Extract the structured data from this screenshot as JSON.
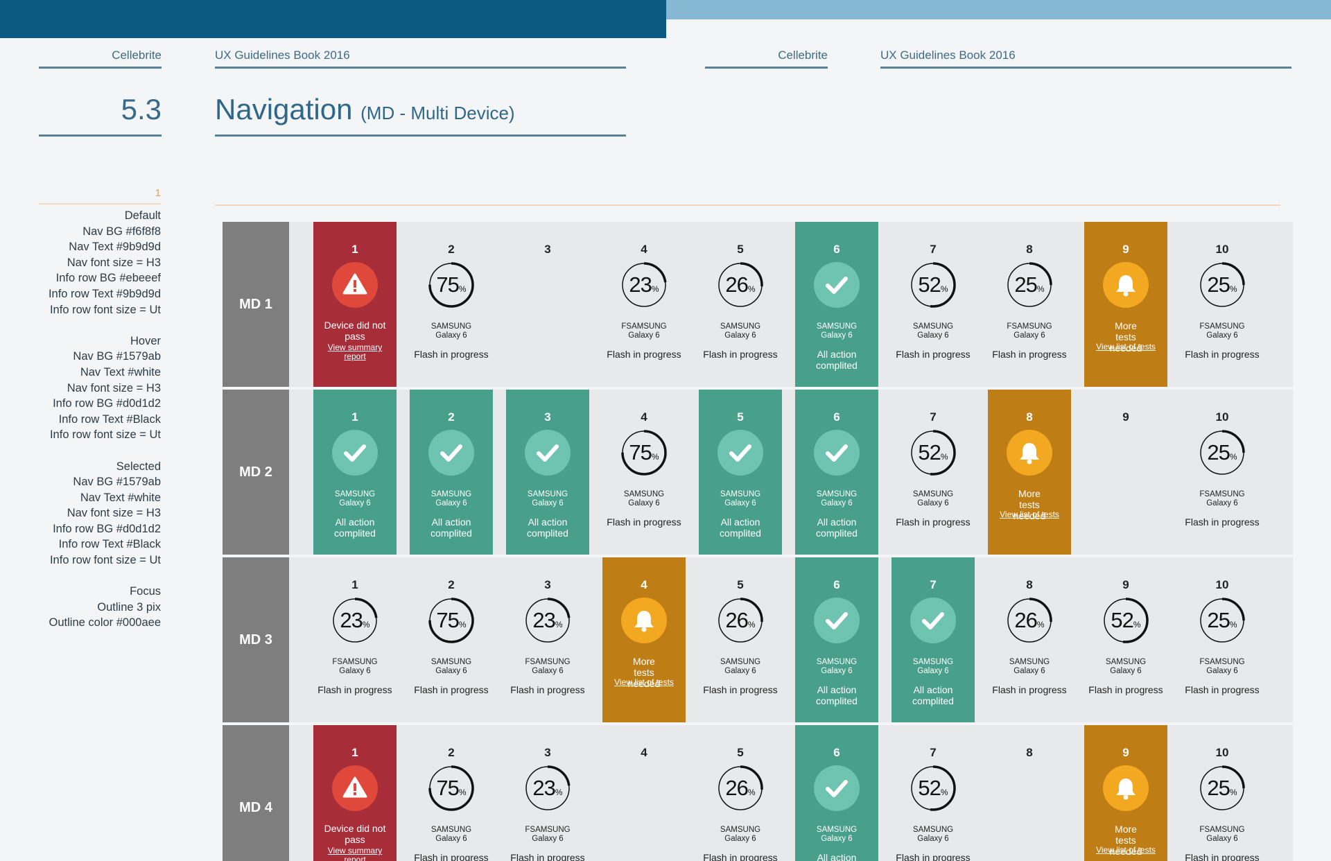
{
  "header": {
    "brand_left": "Cellebrite",
    "book_left": "UX Guidelines Book 2016",
    "brand_right": "Cellebrite",
    "book_right": "UX Guidelines Book 2016",
    "bar_dark_color": "#0b5a82",
    "bar_light_color": "#86b7d3"
  },
  "section": {
    "number": "5.3",
    "title": "Navigation",
    "subtitle": "(MD - Multi Device)"
  },
  "page_number": "1",
  "spec": [
    "Default",
    "Nav BG #f6f8f8",
    "Nav Text #9b9d9d",
    "Nav font size = H3",
    "Info row BG #ebeeef",
    "Info row Text #9b9d9d",
    "Info row font size = Ut",
    "",
    "Hover",
    "Nav BG #1579ab",
    "Nav Text #white",
    "Nav font size = H3",
    "Info row BG #d0d1d2",
    "Info row Text #Black",
    "Info row font size = Ut",
    "",
    "Selected",
    "Nav BG #1579ab",
    "Nav Text #white",
    "Nav font size = H3",
    "Info row BG #d0d1d2",
    "Info row Text #Black",
    "Info row font size = Ut",
    "",
    "Focus",
    "Outline 3 pix",
    "Outline color #000aee"
  ],
  "texts": {
    "samsung": "SAMSUNG",
    "fsamsung": "FSAMSUNG",
    "model": "Galaxy 6",
    "flash": "Flash in progress",
    "complete": "All action complited",
    "fail": "Device did not pass",
    "fail_link": "View summary report",
    "more": "More tests needed",
    "more_link": "View list of tests",
    "pct": "%"
  },
  "colors": {
    "fail_bg": "#a72d39",
    "complete_bg": "#48a08c",
    "more_bg": "#bf7d15",
    "row_bg": "#e8e9ea",
    "label_bg": "#7e7e7e"
  },
  "grid": {
    "rows": [
      {
        "label": "MD 1",
        "cells": [
          {
            "num": "1",
            "type": "fail"
          },
          {
            "num": "2",
            "type": "progress",
            "value": 75,
            "brand": "samsung"
          },
          {
            "num": "3",
            "type": "empty"
          },
          {
            "num": "4",
            "type": "progress",
            "value": 23,
            "brand": "fsamsung"
          },
          {
            "num": "5",
            "type": "progress",
            "value": 26,
            "brand": "samsung"
          },
          {
            "num": "6",
            "type": "complete"
          },
          {
            "num": "7",
            "type": "progress",
            "value": 52,
            "brand": "samsung"
          },
          {
            "num": "8",
            "type": "progress",
            "value": 25,
            "brand": "fsamsung"
          },
          {
            "num": "9",
            "type": "more"
          },
          {
            "num": "10",
            "type": "progress",
            "value": 25,
            "brand": "fsamsung"
          }
        ]
      },
      {
        "label": "MD 2",
        "cells": [
          {
            "num": "1",
            "type": "complete"
          },
          {
            "num": "2",
            "type": "complete"
          },
          {
            "num": "3",
            "type": "complete"
          },
          {
            "num": "4",
            "type": "progress",
            "value": 75,
            "brand": "samsung"
          },
          {
            "num": "5",
            "type": "complete"
          },
          {
            "num": "6",
            "type": "complete"
          },
          {
            "num": "7",
            "type": "progress",
            "value": 52,
            "brand": "samsung"
          },
          {
            "num": "8",
            "type": "more"
          },
          {
            "num": "9",
            "type": "empty"
          },
          {
            "num": "10",
            "type": "progress",
            "value": 25,
            "brand": "fsamsung"
          }
        ]
      },
      {
        "label": "MD 3",
        "cells": [
          {
            "num": "1",
            "type": "progress",
            "value": 23,
            "brand": "fsamsung"
          },
          {
            "num": "2",
            "type": "progress",
            "value": 75,
            "brand": "samsung"
          },
          {
            "num": "3",
            "type": "progress",
            "value": 23,
            "brand": "fsamsung"
          },
          {
            "num": "4",
            "type": "more"
          },
          {
            "num": "5",
            "type": "progress",
            "value": 26,
            "brand": "samsung"
          },
          {
            "num": "6",
            "type": "complete"
          },
          {
            "num": "7",
            "type": "complete"
          },
          {
            "num": "8",
            "type": "progress",
            "value": 26,
            "brand": "samsung"
          },
          {
            "num": "9",
            "type": "progress",
            "value": 52,
            "brand": "samsung"
          },
          {
            "num": "10",
            "type": "progress",
            "value": 25,
            "brand": "fsamsung"
          }
        ]
      },
      {
        "label": "MD 4",
        "cells": [
          {
            "num": "1",
            "type": "fail"
          },
          {
            "num": "2",
            "type": "progress",
            "value": 75,
            "brand": "samsung"
          },
          {
            "num": "3",
            "type": "progress",
            "value": 23,
            "brand": "fsamsung"
          },
          {
            "num": "4",
            "type": "empty"
          },
          {
            "num": "5",
            "type": "progress",
            "value": 26,
            "brand": "samsung"
          },
          {
            "num": "6",
            "type": "complete"
          },
          {
            "num": "7",
            "type": "progress",
            "value": 52,
            "brand": "samsung"
          },
          {
            "num": "8",
            "type": "empty"
          },
          {
            "num": "9",
            "type": "more"
          },
          {
            "num": "10",
            "type": "progress",
            "value": 25,
            "brand": "fsamsung"
          }
        ]
      }
    ]
  }
}
